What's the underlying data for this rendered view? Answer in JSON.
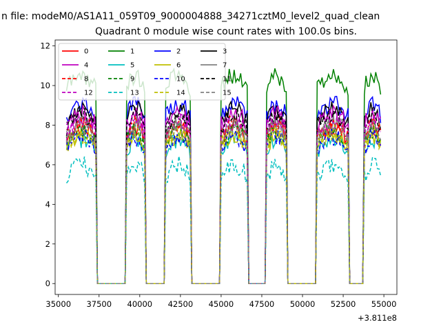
{
  "page_title": "n file: modeM0/AS1A11_059T09_9000004888_34271cztM0_level2_quad_clean",
  "chart_data": {
    "type": "line",
    "title": "Quadrant 0 module wise count rates with 100.0s bins.",
    "xlabel": "",
    "ylabel": "",
    "x_offset_label": "+3.811e8",
    "xlim": [
      34800,
      55800
    ],
    "ylim": [
      -0.55,
      12.3
    ],
    "x_ticks": [
      35000,
      37500,
      40000,
      42500,
      45000,
      47500,
      50000,
      52500,
      55000
    ],
    "x_tick_labels": [
      "35000",
      "37500",
      "40000",
      "42500",
      "45000",
      "47500",
      "50000",
      "52500",
      "55000"
    ],
    "y_ticks": [
      0,
      2,
      4,
      6,
      8,
      10,
      12
    ],
    "y_tick_labels": [
      "0",
      "2",
      "4",
      "6",
      "8",
      "10",
      "12"
    ],
    "grid": false,
    "legend_position": "top-left",
    "legend_columns": 4,
    "gti": {
      "on_intervals": [
        [
          35500,
          37300
        ],
        [
          39200,
          40300
        ],
        [
          41600,
          43100
        ],
        [
          45000,
          46600
        ],
        [
          47800,
          49000
        ],
        [
          50900,
          52800
        ],
        [
          53800,
          54800
        ]
      ],
      "off_value": 0
    },
    "series": [
      {
        "name": "0",
        "color": "#ff0000",
        "dash": "solid",
        "mean": 7.6
      },
      {
        "name": "1",
        "color": "#008000",
        "dash": "solid",
        "mean": 9.9
      },
      {
        "name": "2",
        "color": "#0000ff",
        "dash": "solid",
        "mean": 8.8
      },
      {
        "name": "3",
        "color": "#000000",
        "dash": "solid",
        "mean": 8.5
      },
      {
        "name": "4",
        "color": "#bf00bf",
        "dash": "solid",
        "mean": 8.0
      },
      {
        "name": "5",
        "color": "#00bfbf",
        "dash": "solid",
        "mean": 7.0
      },
      {
        "name": "6",
        "color": "#bfbf00",
        "dash": "solid",
        "mean": 7.2
      },
      {
        "name": "7",
        "color": "#808080",
        "dash": "solid",
        "mean": 7.5
      },
      {
        "name": "8",
        "color": "#ff0000",
        "dash": "dashed",
        "mean": 7.8
      },
      {
        "name": "9",
        "color": "#008000",
        "dash": "dashed",
        "mean": 7.4
      },
      {
        "name": "10",
        "color": "#0000ff",
        "dash": "dashed",
        "mean": 6.8
      },
      {
        "name": "11",
        "color": "#000000",
        "dash": "dashed",
        "mean": 8.2
      },
      {
        "name": "12",
        "color": "#bf00bf",
        "dash": "dashed",
        "mean": 7.9
      },
      {
        "name": "13",
        "color": "#00bfbf",
        "dash": "dashed",
        "mean": 5.4
      },
      {
        "name": "14",
        "color": "#bfbf00",
        "dash": "dashed",
        "mean": 7.3
      },
      {
        "name": "15",
        "color": "#808080",
        "dash": "dashed",
        "mean": 7.6
      }
    ]
  }
}
